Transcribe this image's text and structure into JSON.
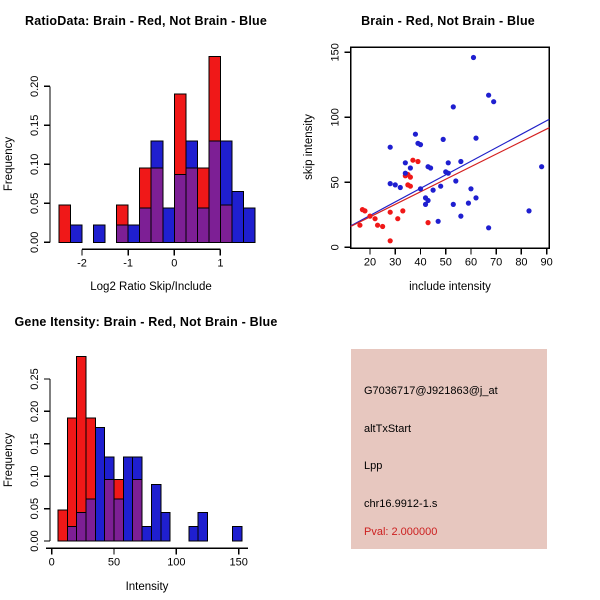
{
  "colors": {
    "red": "#F01818",
    "blue": "#1F1FD0",
    "overlap_purple": "#7D1F95",
    "fit_line_red": "#D42020",
    "fit_line_blue": "#2020C8",
    "axis_black": "#000000",
    "info_box_bg": "#E7C7BF",
    "pval_red": "#CC2020",
    "background": "#FFFFFF"
  },
  "chart_data": [
    {
      "id": "ratio_histogram",
      "type": "bar",
      "subtype": "overlaid-histogram",
      "title": "RatioData: Brain - Red, Not Brain - Blue",
      "xlabel": "Log2 Ratio Skip/Include",
      "ylabel": "Frequency",
      "xlim": [
        -2.65,
        1.8
      ],
      "ylim": [
        0,
        0.245
      ],
      "grid": false,
      "legend_position": "none",
      "bin_width": 0.25,
      "xticks": [
        [
          -2,
          "-2"
        ],
        [
          -1,
          "-1"
        ],
        [
          0,
          "0"
        ],
        [
          1,
          "1"
        ]
      ],
      "yticks": [
        [
          0,
          "0.00"
        ],
        [
          0.05,
          "0.05"
        ],
        [
          0.1,
          "0.10"
        ],
        [
          0.15,
          "0.15"
        ],
        [
          0.2,
          "0.20"
        ]
      ],
      "bars": [
        {
          "x0": -2.5,
          "color": "red",
          "h": 0.048,
          "ov": 0
        },
        {
          "x0": -2.25,
          "color": "blue",
          "h": 0.022,
          "ov": 0
        },
        {
          "x0": -1.75,
          "color": "blue",
          "h": 0.022,
          "ov": 0
        },
        {
          "x0": -1.25,
          "color": "red",
          "h": 0.048,
          "ov": 0.022
        },
        {
          "x0": -1.0,
          "color": "blue",
          "h": 0.022,
          "ov": 0
        },
        {
          "x0": -0.75,
          "color": "red",
          "h": 0.095,
          "ov": 0.044
        },
        {
          "x0": -0.5,
          "color": "blue",
          "h": 0.13,
          "ov": 0.095
        },
        {
          "x0": -0.25,
          "color": "blue",
          "h": 0.044,
          "ov": 0
        },
        {
          "x0": 0.0,
          "color": "red",
          "h": 0.19,
          "ov": 0.087
        },
        {
          "x0": 0.25,
          "color": "blue",
          "h": 0.13,
          "ov": 0.095
        },
        {
          "x0": 0.5,
          "color": "red",
          "h": 0.095,
          "ov": 0.044
        },
        {
          "x0": 0.75,
          "color": "red",
          "h": 0.238,
          "ov": 0.13
        },
        {
          "x0": 1.0,
          "color": "blue",
          "h": 0.13,
          "ov": 0.048
        },
        {
          "x0": 1.25,
          "color": "blue",
          "h": 0.065,
          "ov": 0
        },
        {
          "x0": 1.5,
          "color": "blue",
          "h": 0.044,
          "ov": 0
        }
      ]
    },
    {
      "id": "intensity_scatter",
      "type": "scatter",
      "title": "Brain - Red, Not Brain - Blue",
      "xlabel": "include intensity",
      "ylabel": "skip intensity",
      "xlim": [
        12,
        92
      ],
      "ylim": [
        -1,
        154
      ],
      "grid": false,
      "legend_position": "none",
      "xticks": [
        [
          20,
          "20"
        ],
        [
          30,
          "30"
        ],
        [
          40,
          "40"
        ],
        [
          50,
          "50"
        ],
        [
          60,
          "60"
        ],
        [
          70,
          "70"
        ],
        [
          80,
          "80"
        ],
        [
          90,
          "90"
        ]
      ],
      "yticks": [
        [
          0,
          "0"
        ],
        [
          50,
          "50"
        ],
        [
          100,
          "100"
        ],
        [
          150,
          "150"
        ]
      ],
      "series": [
        {
          "name": "Brain",
          "color": "red",
          "points": [
            [
              16,
              17
            ],
            [
              17,
              29
            ],
            [
              18,
              28
            ],
            [
              20,
              24
            ],
            [
              22,
              22
            ],
            [
              23,
              17
            ],
            [
              25,
              16
            ],
            [
              28,
              27
            ],
            [
              31,
              22
            ],
            [
              33,
              28
            ],
            [
              28,
              5
            ],
            [
              34,
              55
            ],
            [
              35,
              56
            ],
            [
              36,
              54
            ],
            [
              35,
              48
            ],
            [
              36,
              47
            ],
            [
              37,
              67
            ],
            [
              39,
              66
            ],
            [
              43,
              19
            ]
          ]
        },
        {
          "name": "Not Brain",
          "color": "blue",
          "points": [
            [
              61,
              146
            ],
            [
              67,
              117
            ],
            [
              69,
              112
            ],
            [
              53,
              108
            ],
            [
              38,
              87
            ],
            [
              49,
              83
            ],
            [
              62,
              84
            ],
            [
              39,
              80
            ],
            [
              40,
              79
            ],
            [
              28,
              77
            ],
            [
              34,
              65
            ],
            [
              36,
              61
            ],
            [
              43,
              62
            ],
            [
              44,
              61
            ],
            [
              51,
              65
            ],
            [
              56,
              66
            ],
            [
              50,
              58
            ],
            [
              51,
              57
            ],
            [
              34,
              57
            ],
            [
              28,
              49
            ],
            [
              30,
              48
            ],
            [
              32,
              46
            ],
            [
              40,
              45
            ],
            [
              45,
              44
            ],
            [
              48,
              47
            ],
            [
              54,
              51
            ],
            [
              60,
              45
            ],
            [
              42,
              38
            ],
            [
              43,
              36
            ],
            [
              42,
              33
            ],
            [
              47,
              20
            ],
            [
              53,
              33
            ],
            [
              56,
              24
            ],
            [
              59,
              34
            ],
            [
              62,
              38
            ],
            [
              67,
              15
            ],
            [
              83,
              28
            ],
            [
              88,
              62
            ]
          ]
        }
      ],
      "fit_lines": [
        {
          "color": "blue",
          "x1": 12,
          "y1": 16.5,
          "x2": 91.5,
          "y2": 98.5
        },
        {
          "color": "red",
          "x1": 12,
          "y1": 16.0,
          "x2": 91.5,
          "y2": 92.0
        }
      ]
    },
    {
      "id": "gene_intensity_histogram",
      "type": "bar",
      "subtype": "overlaid-histogram",
      "title": "Gene Itensity: Brain - Red, Not Brain - Blue",
      "xlabel": "Intensity",
      "ylabel": "Frequency",
      "xlim": [
        -5,
        157
      ],
      "ylim": [
        0,
        0.29
      ],
      "grid": false,
      "legend_position": "none",
      "bin_width": 7.5,
      "xticks": [
        [
          0,
          "0"
        ],
        [
          50,
          "50"
        ],
        [
          100,
          "100"
        ],
        [
          150,
          "150"
        ]
      ],
      "yticks": [
        [
          0,
          "0.00"
        ],
        [
          0.05,
          "0.05"
        ],
        [
          0.1,
          "0.10"
        ],
        [
          0.15,
          "0.15"
        ],
        [
          0.2,
          "0.20"
        ],
        [
          0.25,
          "0.25"
        ]
      ],
      "bars": [
        {
          "x0": 5,
          "color": "red",
          "h": 0.048,
          "ov": 0
        },
        {
          "x0": 12.5,
          "color": "red",
          "h": 0.19,
          "ov": 0.022
        },
        {
          "x0": 20,
          "color": "red",
          "h": 0.285,
          "ov": 0.044
        },
        {
          "x0": 27.5,
          "color": "red",
          "h": 0.19,
          "ov": 0.065
        },
        {
          "x0": 35,
          "color": "blue",
          "h": 0.175,
          "ov": 0
        },
        {
          "x0": 42.5,
          "color": "blue",
          "h": 0.13,
          "ov": 0.095
        },
        {
          "x0": 50,
          "color": "red",
          "h": 0.095,
          "ov": 0.065
        },
        {
          "x0": 57.5,
          "color": "blue",
          "h": 0.13,
          "ov": 0
        },
        {
          "x0": 65,
          "color": "blue",
          "h": 0.13,
          "ov": 0.095
        },
        {
          "x0": 72.5,
          "color": "blue",
          "h": 0.022,
          "ov": 0
        },
        {
          "x0": 80,
          "color": "blue",
          "h": 0.087,
          "ov": 0
        },
        {
          "x0": 87.5,
          "color": "blue",
          "h": 0.044,
          "ov": 0
        },
        {
          "x0": 110,
          "color": "blue",
          "h": 0.022,
          "ov": 0
        },
        {
          "x0": 117.5,
          "color": "blue",
          "h": 0.044,
          "ov": 0
        },
        {
          "x0": 145,
          "color": "blue",
          "h": 0.022,
          "ov": 0
        }
      ]
    }
  ],
  "info_panel": {
    "lines": [
      {
        "text": "G7036717@J921863@j_at",
        "color": "#000000"
      },
      {
        "text": "altTxStart",
        "color": "#000000"
      },
      {
        "text": "Lpp",
        "color": "#000000"
      },
      {
        "text": "chr16.9912-1.s",
        "color": "#000000"
      },
      {
        "text": "Pval: 2.000000",
        "color": "#CC2020"
      }
    ]
  }
}
